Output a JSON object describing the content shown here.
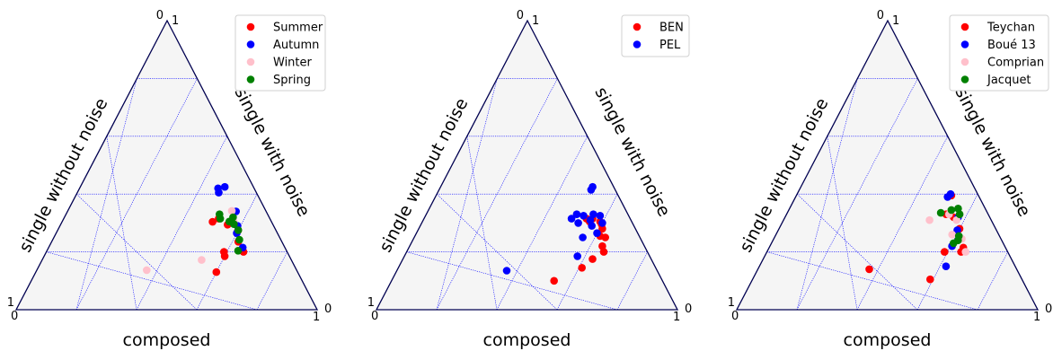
{
  "chart_data": [
    {
      "type": "scatter",
      "subtype": "ternary",
      "axes": {
        "bottom": "composed",
        "left": "single without noise",
        "right": "single with noise"
      },
      "tick_labels": {
        "top_left": "0",
        "top_right": "1",
        "left_corner_top": "1",
        "left_corner_bottom": "0",
        "right_corner_bottom": "1",
        "right_corner_right": "0"
      },
      "grid": true,
      "legend_position": "top-right",
      "series": [
        {
          "name": "Summer",
          "color": "#ff0000",
          "points": [
            {
              "composed": 0.515,
              "single_with_noise": 0.315,
              "single_without_noise": 0.17
            },
            {
              "composed": 0.5,
              "single_with_noise": 0.304,
              "single_without_noise": 0.196
            },
            {
              "composed": 0.555,
              "single_with_noise": 0.294,
              "single_without_noise": 0.151
            },
            {
              "composed": 0.6,
              "single_with_noise": 0.274,
              "single_without_noise": 0.126
            },
            {
              "composed": 0.59,
              "single_with_noise": 0.2,
              "single_without_noise": 0.21
            },
            {
              "composed": 0.62,
              "single_with_noise": 0.235,
              "single_without_noise": 0.145
            },
            {
              "composed": 0.655,
              "single_with_noise": 0.2,
              "single_without_noise": 0.145
            },
            {
              "composed": 0.6,
              "single_with_noise": 0.13,
              "single_without_noise": 0.27
            },
            {
              "composed": 0.6,
              "single_with_noise": 0.185,
              "single_without_noise": 0.215
            }
          ]
        },
        {
          "name": "Autumn",
          "color": "#0000ff",
          "points": [
            {
              "composed": 0.46,
              "single_with_noise": 0.42,
              "single_without_noise": 0.12
            },
            {
              "composed": 0.48,
              "single_with_noise": 0.425,
              "single_without_noise": 0.095
            },
            {
              "composed": 0.47,
              "single_with_noise": 0.405,
              "single_without_noise": 0.125
            },
            {
              "composed": 0.56,
              "single_with_noise": 0.34,
              "single_without_noise": 0.1
            },
            {
              "composed": 0.59,
              "single_with_noise": 0.29,
              "single_without_noise": 0.12
            },
            {
              "composed": 0.6,
              "single_with_noise": 0.265,
              "single_without_noise": 0.135
            },
            {
              "composed": 0.645,
              "single_with_noise": 0.215,
              "single_without_noise": 0.14
            }
          ]
        },
        {
          "name": "Winter",
          "color": "#ffc0cb",
          "points": [
            {
              "composed": 0.545,
              "single_with_noise": 0.342,
              "single_without_noise": 0.113
            },
            {
              "composed": 0.57,
              "single_with_noise": 0.305,
              "single_without_noise": 0.125
            },
            {
              "composed": 0.53,
              "single_with_noise": 0.172,
              "single_without_noise": 0.298
            },
            {
              "composed": 0.365,
              "single_with_noise": 0.137,
              "single_without_noise": 0.498
            }
          ]
        },
        {
          "name": "Spring",
          "color": "#008000",
          "points": [
            {
              "composed": 0.51,
              "single_with_noise": 0.33,
              "single_without_noise": 0.16
            },
            {
              "composed": 0.52,
              "single_with_noise": 0.315,
              "single_without_noise": 0.165
            },
            {
              "composed": 0.555,
              "single_with_noise": 0.305,
              "single_without_noise": 0.14
            },
            {
              "composed": 0.56,
              "single_with_noise": 0.32,
              "single_without_noise": 0.12
            },
            {
              "composed": 0.575,
              "single_with_noise": 0.296,
              "single_without_noise": 0.129
            },
            {
              "composed": 0.6,
              "single_with_noise": 0.275,
              "single_without_noise": 0.125
            },
            {
              "composed": 0.62,
              "single_with_noise": 0.242,
              "single_without_noise": 0.138
            },
            {
              "composed": 0.635,
              "single_with_noise": 0.204,
              "single_without_noise": 0.161
            }
          ]
        }
      ]
    },
    {
      "type": "scatter",
      "subtype": "ternary",
      "axes": {
        "bottom": "composed",
        "left": "single without noise",
        "right": "single with noise"
      },
      "tick_labels": {
        "top_left": "0",
        "top_right": "1",
        "left_corner_top": "1",
        "left_corner_bottom": "0",
        "right_corner_bottom": "1",
        "right_corner_right": "0"
      },
      "grid": true,
      "legend_position": "top-right",
      "series": [
        {
          "name": "BEN",
          "color": "#ff0000",
          "points": [
            {
              "composed": 0.56,
              "single_with_noise": 0.315,
              "single_without_noise": 0.125
            },
            {
              "composed": 0.555,
              "single_with_noise": 0.305,
              "single_without_noise": 0.14
            },
            {
              "composed": 0.59,
              "single_with_noise": 0.305,
              "single_without_noise": 0.105
            },
            {
              "composed": 0.6,
              "single_with_noise": 0.295,
              "single_without_noise": 0.105
            },
            {
              "composed": 0.61,
              "single_with_noise": 0.28,
              "single_without_noise": 0.11
            },
            {
              "composed": 0.615,
              "single_with_noise": 0.255,
              "single_without_noise": 0.13
            },
            {
              "composed": 0.635,
              "single_with_noise": 0.25,
              "single_without_noise": 0.115
            },
            {
              "composed": 0.64,
              "single_with_noise": 0.22,
              "single_without_noise": 0.14
            },
            {
              "composed": 0.655,
              "single_with_noise": 0.2,
              "single_without_noise": 0.145
            },
            {
              "composed": 0.63,
              "single_with_noise": 0.175,
              "single_without_noise": 0.195
            },
            {
              "composed": 0.61,
              "single_with_noise": 0.145,
              "single_without_noise": 0.245
            },
            {
              "composed": 0.54,
              "single_with_noise": 0.1,
              "single_without_noise": 0.36
            },
            {
              "composed": 0.54,
              "single_with_noise": 0.315,
              "single_without_noise": 0.145
            }
          ]
        },
        {
          "name": "PEL",
          "color": "#0000ff",
          "points": [
            {
              "composed": 0.505,
              "single_with_noise": 0.425,
              "single_without_noise": 0.07
            },
            {
              "composed": 0.505,
              "single_with_noise": 0.415,
              "single_without_noise": 0.08
            },
            {
              "composed": 0.49,
              "single_with_noise": 0.315,
              "single_without_noise": 0.195
            },
            {
              "composed": 0.525,
              "single_with_noise": 0.325,
              "single_without_noise": 0.15
            },
            {
              "composed": 0.555,
              "single_with_noise": 0.33,
              "single_without_noise": 0.115
            },
            {
              "composed": 0.58,
              "single_with_noise": 0.325,
              "single_without_noise": 0.095
            },
            {
              "composed": 0.52,
              "single_with_noise": 0.3,
              "single_without_noise": 0.18
            },
            {
              "composed": 0.555,
              "single_with_noise": 0.31,
              "single_without_noise": 0.135
            },
            {
              "composed": 0.57,
              "single_with_noise": 0.29,
              "single_without_noise": 0.14
            },
            {
              "composed": 0.6,
              "single_with_noise": 0.3,
              "single_without_noise": 0.1
            },
            {
              "composed": 0.6,
              "single_with_noise": 0.265,
              "single_without_noise": 0.135
            },
            {
              "composed": 0.56,
              "single_with_noise": 0.25,
              "single_without_noise": 0.19
            },
            {
              "composed": 0.575,
              "single_with_noise": 0.185,
              "single_without_noise": 0.24
            },
            {
              "composed": 0.5,
              "single_with_noise": 0.33,
              "single_without_noise": 0.17
            },
            {
              "composed": 0.365,
              "single_with_noise": 0.135,
              "single_without_noise": 0.5
            }
          ]
        }
      ]
    },
    {
      "type": "scatter",
      "subtype": "ternary",
      "axes": {
        "bottom": "composed",
        "left": "single without noise",
        "right": "single with noise"
      },
      "tick_labels": {
        "top_left": "0",
        "top_right": "1",
        "left_corner_top": "1",
        "left_corner_bottom": "0",
        "right_corner_bottom": "1",
        "right_corner_right": "0"
      },
      "grid": true,
      "legend_position": "top-right",
      "series": [
        {
          "name": "Teychan",
          "color": "#ff0000",
          "points": [
            {
              "composed": 0.515,
              "single_with_noise": 0.395,
              "single_without_noise": 0.09
            },
            {
              "composed": 0.53,
              "single_with_noise": 0.33,
              "single_without_noise": 0.14
            },
            {
              "composed": 0.56,
              "single_with_noise": 0.32,
              "single_without_noise": 0.12
            },
            {
              "composed": 0.6,
              "single_with_noise": 0.28,
              "single_without_noise": 0.12
            },
            {
              "composed": 0.645,
              "single_with_noise": 0.215,
              "single_without_noise": 0.14
            },
            {
              "composed": 0.645,
              "single_with_noise": 0.2,
              "single_without_noise": 0.155
            },
            {
              "composed": 0.59,
              "single_with_noise": 0.2,
              "single_without_noise": 0.21
            },
            {
              "composed": 0.59,
              "single_with_noise": 0.105,
              "single_without_noise": 0.305
            },
            {
              "composed": 0.37,
              "single_with_noise": 0.14,
              "single_without_noise": 0.49
            }
          ]
        },
        {
          "name": "Boué 13",
          "color": "#0000ff",
          "points": [
            {
              "composed": 0.51,
              "single_with_noise": 0.4,
              "single_without_noise": 0.09
            },
            {
              "composed": 0.505,
              "single_with_noise": 0.39,
              "single_without_noise": 0.105
            },
            {
              "composed": 0.575,
              "single_with_noise": 0.32,
              "single_without_noise": 0.105
            },
            {
              "composed": 0.595,
              "single_with_noise": 0.275,
              "single_without_noise": 0.13
            },
            {
              "composed": 0.605,
              "single_with_noise": 0.22,
              "single_without_noise": 0.175
            },
            {
              "composed": 0.62,
              "single_with_noise": 0.15,
              "single_without_noise": 0.23
            }
          ]
        },
        {
          "name": "Comprian",
          "color": "#ffc0cb",
          "points": [
            {
              "composed": 0.485,
              "single_with_noise": 0.31,
              "single_without_noise": 0.205
            },
            {
              "composed": 0.54,
              "single_with_noise": 0.33,
              "single_without_noise": 0.13
            },
            {
              "composed": 0.575,
              "single_with_noise": 0.31,
              "single_without_noise": 0.115
            },
            {
              "composed": 0.585,
              "single_with_noise": 0.26,
              "single_without_noise": 0.155
            },
            {
              "composed": 0.625,
              "single_with_noise": 0.245,
              "single_without_noise": 0.13
            },
            {
              "composed": 0.66,
              "single_with_noise": 0.2,
              "single_without_noise": 0.14
            }
          ]
        },
        {
          "name": "Jacquet",
          "color": "#008000",
          "points": [
            {
              "composed": 0.51,
              "single_with_noise": 0.335,
              "single_without_noise": 0.155
            },
            {
              "composed": 0.54,
              "single_with_noise": 0.345,
              "single_without_noise": 0.115
            },
            {
              "composed": 0.56,
              "single_with_noise": 0.35,
              "single_without_noise": 0.09
            },
            {
              "composed": 0.575,
              "single_with_noise": 0.33,
              "single_without_noise": 0.095
            },
            {
              "composed": 0.61,
              "single_with_noise": 0.255,
              "single_without_noise": 0.135
            },
            {
              "composed": 0.615,
              "single_with_noise": 0.24,
              "single_without_noise": 0.145
            },
            {
              "composed": 0.605,
              "single_with_noise": 0.23,
              "single_without_noise": 0.165
            }
          ]
        }
      ]
    }
  ]
}
